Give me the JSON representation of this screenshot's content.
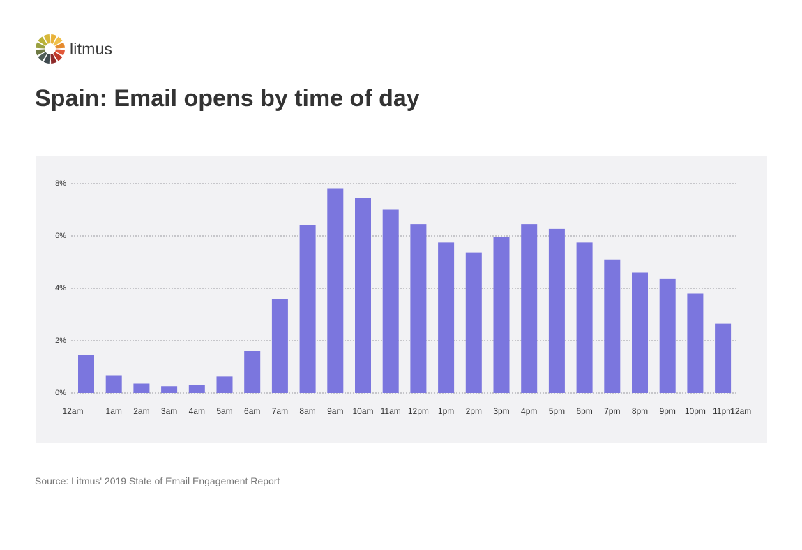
{
  "brand": {
    "name": "litmus"
  },
  "header": {
    "title": "Spain: Email opens by time of day"
  },
  "footer": {
    "source": "Source: Litmus' 2019 State of Email Engagement Report"
  },
  "colors": {
    "bar": "#7b76de",
    "panel": "#f2f2f4",
    "grid": "#9a9aa0",
    "text": "#333333",
    "logo_segments": [
      "#e8b23a",
      "#f0c04b",
      "#e58a2d",
      "#e2583a",
      "#c0392b",
      "#8e2a2a",
      "#3f4a4f",
      "#4f5d57",
      "#6f7a45",
      "#9aa040",
      "#b9b238",
      "#d7b83a"
    ]
  },
  "chart_data": {
    "type": "bar",
    "title": "Spain: Email opens by time of day",
    "xlabel": "",
    "ylabel": "",
    "categories": [
      "12am",
      "1am",
      "2am",
      "3am",
      "4am",
      "5am",
      "6am",
      "7am",
      "8am",
      "9am",
      "10am",
      "11am",
      "12pm",
      "1pm",
      "2pm",
      "3pm",
      "4pm",
      "5pm",
      "6pm",
      "7pm",
      "8pm",
      "9pm",
      "10pm",
      "11pm"
    ],
    "x_tick_labels": [
      "12am",
      "1am",
      "2am",
      "3am",
      "4am",
      "5am",
      "6am",
      "7am",
      "8am",
      "9am",
      "10am",
      "11am",
      "12pm",
      "1pm",
      "2pm",
      "3pm",
      "4pm",
      "5pm",
      "6pm",
      "7pm",
      "8pm",
      "9pm",
      "10pm",
      "11pm",
      "12am"
    ],
    "values": [
      1.45,
      0.68,
      0.36,
      0.26,
      0.3,
      0.63,
      1.6,
      3.6,
      6.42,
      7.8,
      7.45,
      7.0,
      6.45,
      5.75,
      5.37,
      5.95,
      6.45,
      6.27,
      5.75,
      5.1,
      4.6,
      4.35,
      3.8,
      2.65
    ],
    "y_ticks": [
      0,
      2,
      4,
      6,
      8
    ],
    "y_tick_labels": [
      "0%",
      "2%",
      "4%",
      "6%",
      "8%"
    ],
    "ylim": [
      0,
      8
    ],
    "grid": true,
    "legend": "none"
  }
}
